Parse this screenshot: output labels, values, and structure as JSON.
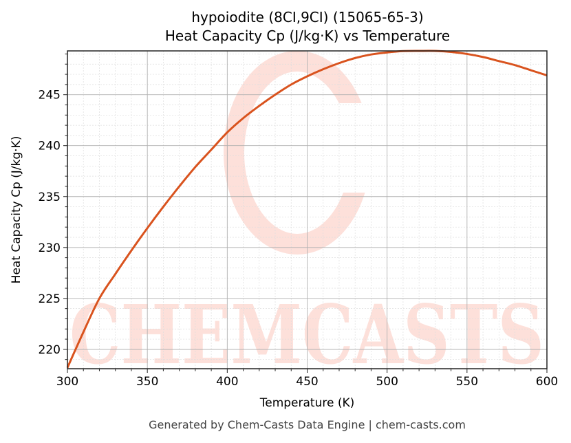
{
  "chart_data": {
    "type": "line",
    "title": "hypoiodite (8CI,9CI) (15065-65-3)",
    "subtitle": "Heat Capacity Cp (J/kg·K) vs Temperature",
    "xlabel": "Temperature (K)",
    "ylabel": "Heat Capacity Cp (J/kg·K)",
    "xlim": [
      300,
      600
    ],
    "ylim": [
      218.1,
      249.3
    ],
    "x_ticks": [
      300,
      350,
      400,
      450,
      500,
      550,
      600
    ],
    "y_ticks": [
      220,
      225,
      230,
      235,
      240,
      245
    ],
    "grid": true,
    "legend": null,
    "series": [
      {
        "name": "Cp",
        "color": "#d9531e",
        "x": [
          300,
          310,
          320,
          330,
          340,
          350,
          360,
          370,
          380,
          390,
          400,
          410,
          420,
          430,
          440,
          450,
          460,
          470,
          480,
          490,
          500,
          510,
          520,
          530,
          540,
          550,
          560,
          570,
          580,
          590,
          600
        ],
        "values": [
          218.2,
          221.7,
          225.0,
          227.4,
          229.7,
          231.9,
          234.0,
          236.0,
          237.9,
          239.6,
          241.3,
          242.7,
          243.9,
          245.0,
          246.0,
          246.8,
          247.5,
          248.1,
          248.6,
          248.95,
          249.15,
          249.28,
          249.3,
          249.3,
          249.2,
          249.0,
          248.7,
          248.3,
          247.9,
          247.4,
          246.9
        ]
      }
    ],
    "watermark": "CHEMCASTS"
  },
  "header": {
    "title": "hypoiodite (8CI,9CI) (15065-65-3)",
    "subtitle": "Heat Capacity Cp (J/kg·K) vs Temperature"
  },
  "axes": {
    "xlabel": "Temperature (K)",
    "ylabel": "Heat Capacity Cp (J/kg·K)"
  },
  "footer": {
    "text": "Generated by Chem-Casts Data Engine | chem-casts.com"
  },
  "colors": {
    "line": "#d9531e",
    "watermark": "#fde0da",
    "grid_major": "#b0b0b0",
    "grid_minor": "#dddddd"
  }
}
